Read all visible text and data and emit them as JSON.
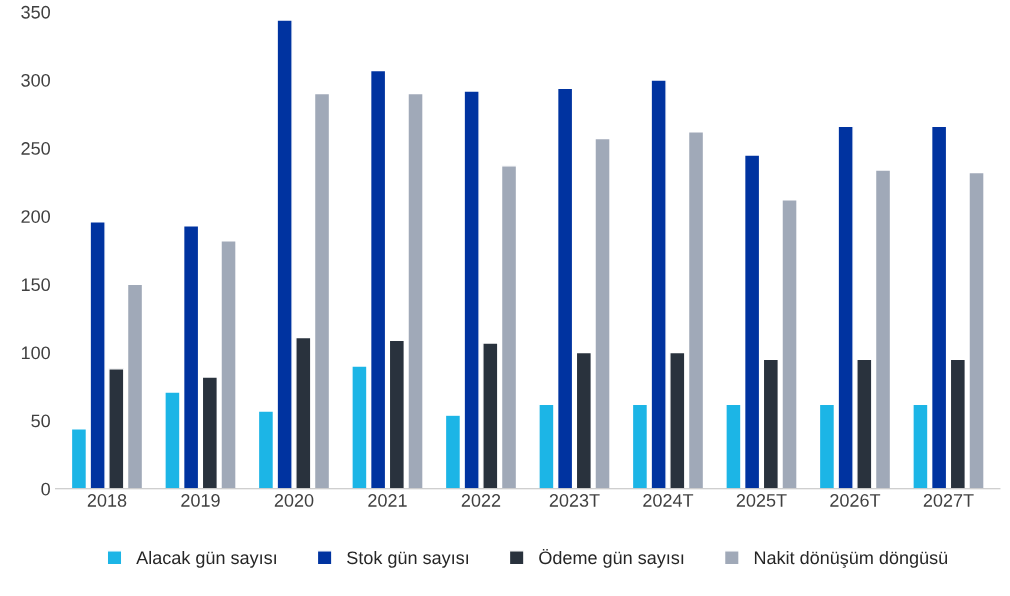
{
  "chart_data": {
    "type": "bar",
    "categories": [
      "2018",
      "2019",
      "2020",
      "2021",
      "2022",
      "2023T",
      "2024T",
      "2025T",
      "2026T",
      "2027T"
    ],
    "series": [
      {
        "name": "Alacak gün sayısı",
        "color": "#1cb5e6",
        "values": [
          44,
          71,
          57,
          90,
          54,
          62,
          62,
          62,
          62,
          62
        ]
      },
      {
        "name": "Stok gün sayısı",
        "color": "#0033a0",
        "values": [
          196,
          193,
          344,
          307,
          292,
          294,
          300,
          245,
          266,
          266
        ]
      },
      {
        "name": "Ödeme gün sayısı",
        "color": "#29323d",
        "values": [
          88,
          82,
          111,
          109,
          107,
          100,
          100,
          95,
          95,
          95
        ]
      },
      {
        "name": "Nakit dönüşüm döngüsü",
        "color": "#a0a9b8",
        "values": [
          150,
          182,
          290,
          290,
          237,
          257,
          262,
          212,
          234,
          232
        ]
      }
    ],
    "ylim": [
      0,
      350
    ],
    "yticks": [
      0,
      50,
      100,
      150,
      200,
      250,
      300,
      350
    ],
    "grid": false,
    "legend": "bottom"
  }
}
